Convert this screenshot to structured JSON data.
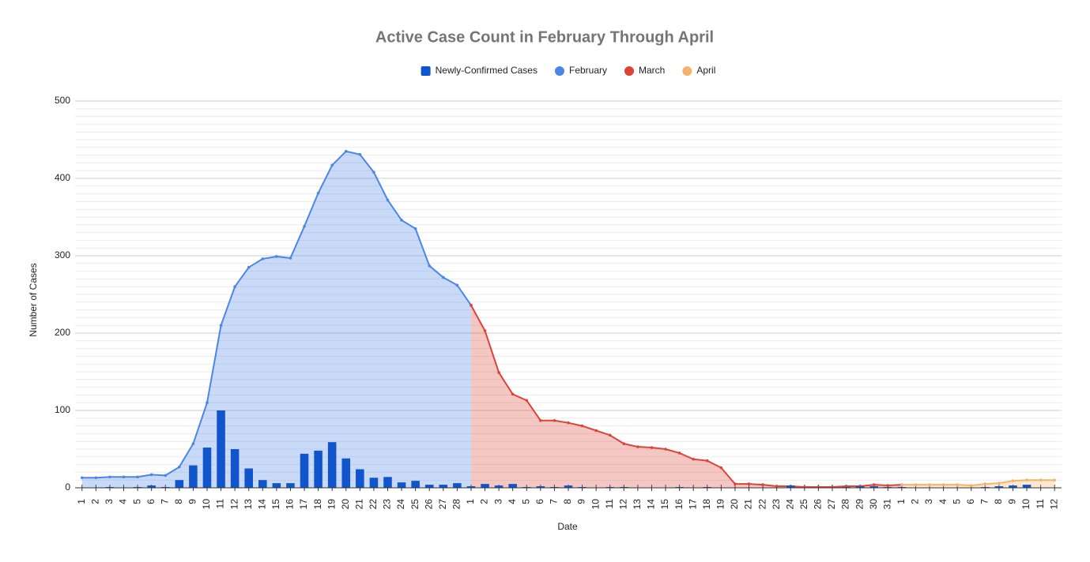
{
  "chart_data": {
    "type": "combo",
    "title": "Active Case Count in February Through April",
    "x_label": "Date",
    "y_label": "Number of Cases",
    "categories": [
      "1",
      "2",
      "3",
      "4",
      "5",
      "6",
      "7",
      "8",
      "9",
      "10",
      "11",
      "12",
      "13",
      "14",
      "15",
      "16",
      "17",
      "18",
      "19",
      "20",
      "21",
      "22",
      "23",
      "24",
      "25",
      "26",
      "27",
      "28",
      "1",
      "2",
      "3",
      "4",
      "5",
      "6",
      "7",
      "8",
      "9",
      "10",
      "11",
      "12",
      "13",
      "14",
      "15",
      "16",
      "17",
      "18",
      "19",
      "20",
      "21",
      "22",
      "23",
      "24",
      "25",
      "26",
      "27",
      "28",
      "29",
      "30",
      "31",
      "1",
      "2",
      "3",
      "4",
      "5",
      "6",
      "7",
      "8",
      "9",
      "10",
      "11",
      "12"
    ],
    "ylim": [
      0,
      500
    ],
    "yticks": [
      0,
      100,
      200,
      300,
      400,
      500
    ],
    "grid": true,
    "legend": "top",
    "series": [
      {
        "name": "Newly-Confirmed Cases",
        "type": "bar",
        "color": "#1155cc",
        "values": [
          0,
          0,
          1,
          0,
          1,
          3,
          1,
          10,
          29,
          52,
          100,
          50,
          25,
          10,
          6,
          6,
          44,
          48,
          59,
          38,
          24,
          13,
          14,
          7,
          9,
          4,
          4,
          6,
          2,
          5,
          3,
          5,
          1,
          2,
          1,
          3,
          1,
          0,
          1,
          1,
          0,
          0,
          0,
          1,
          0,
          1,
          0,
          0,
          0,
          0,
          0,
          3,
          0,
          0,
          0,
          1,
          2,
          2,
          1,
          1,
          0,
          0,
          0,
          0,
          0,
          1,
          2,
          3,
          4,
          0,
          0
        ]
      },
      {
        "name": "February",
        "type": "area",
        "color": "#4a86e8",
        "values": [
          13,
          13,
          14,
          14,
          14,
          17,
          16,
          27,
          57,
          110,
          210,
          260,
          285,
          296,
          299,
          297,
          338,
          381,
          417,
          435,
          431,
          408,
          372,
          346,
          335,
          287,
          272,
          262,
          236,
          null,
          null,
          null,
          null,
          null,
          null,
          null,
          null,
          null,
          null,
          null,
          null,
          null,
          null,
          null,
          null,
          null,
          null,
          null,
          null,
          null,
          null,
          null,
          null,
          null,
          null,
          null,
          null,
          null,
          null,
          null,
          null,
          null,
          null,
          null,
          null,
          null,
          null,
          null,
          null,
          null,
          null
        ]
      },
      {
        "name": "March",
        "type": "area",
        "color": "#db4437",
        "values": [
          null,
          null,
          null,
          null,
          null,
          null,
          null,
          null,
          null,
          null,
          null,
          null,
          null,
          null,
          null,
          null,
          null,
          null,
          null,
          null,
          null,
          null,
          null,
          null,
          null,
          null,
          null,
          null,
          236,
          203,
          149,
          121,
          113,
          87,
          87,
          84,
          80,
          74,
          68,
          57,
          53,
          52,
          50,
          45,
          37,
          35,
          26,
          5,
          5,
          4,
          2,
          2,
          1,
          1,
          1,
          2,
          2,
          4,
          3,
          4,
          null,
          null,
          null,
          null,
          null,
          null,
          null,
          null,
          null,
          null,
          null
        ]
      },
      {
        "name": "April",
        "type": "area",
        "color": "#f6b26b",
        "values": [
          null,
          null,
          null,
          null,
          null,
          null,
          null,
          null,
          null,
          null,
          null,
          null,
          null,
          null,
          null,
          null,
          null,
          null,
          null,
          null,
          null,
          null,
          null,
          null,
          null,
          null,
          null,
          null,
          null,
          null,
          null,
          null,
          null,
          null,
          null,
          null,
          null,
          null,
          null,
          null,
          null,
          null,
          null,
          null,
          null,
          null,
          null,
          null,
          null,
          null,
          null,
          null,
          null,
          null,
          null,
          null,
          null,
          null,
          null,
          4,
          4,
          4,
          4,
          4,
          3,
          5,
          6,
          9,
          10,
          10,
          10
        ]
      }
    ]
  }
}
